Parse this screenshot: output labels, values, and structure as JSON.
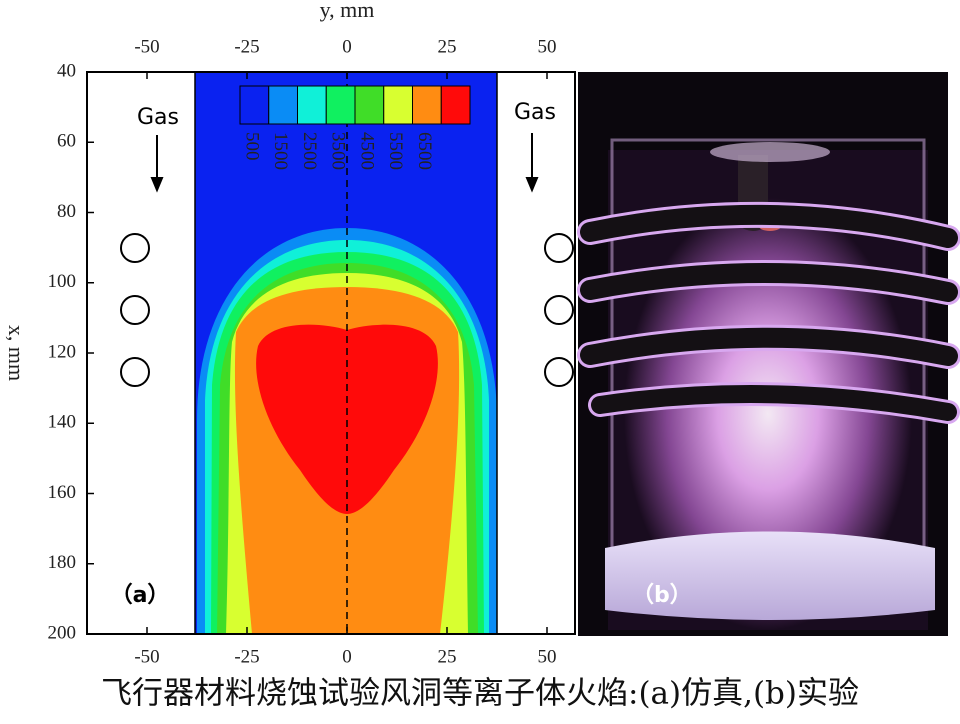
{
  "chart_data": {
    "type": "contour",
    "xlabel": "y, mm",
    "ylabel": "x, mm",
    "xlim": [
      -65,
      57
    ],
    "ylim": [
      40,
      200
    ],
    "y_inverted": true,
    "xticks": [
      -50,
      -25,
      0,
      25,
      50
    ],
    "yticks": [
      40,
      60,
      80,
      100,
      120,
      140,
      160,
      180,
      200
    ],
    "levels": [
      500,
      1500,
      2500,
      3500,
      4500,
      5500,
      6500
    ],
    "colors": [
      "#0a22f0",
      "#0a8cf5",
      "#10f0d8",
      "#10f060",
      "#40dd28",
      "#d8ff30",
      "#ff8c12",
      "#ff0a0a"
    ],
    "annotations": [
      "Gas",
      "Gas",
      "（a）"
    ],
    "photo_label": "（b）",
    "caption": "飞行器材料烧蚀试验风洞等离子体火焰:(a)仿真,(b)实验"
  }
}
